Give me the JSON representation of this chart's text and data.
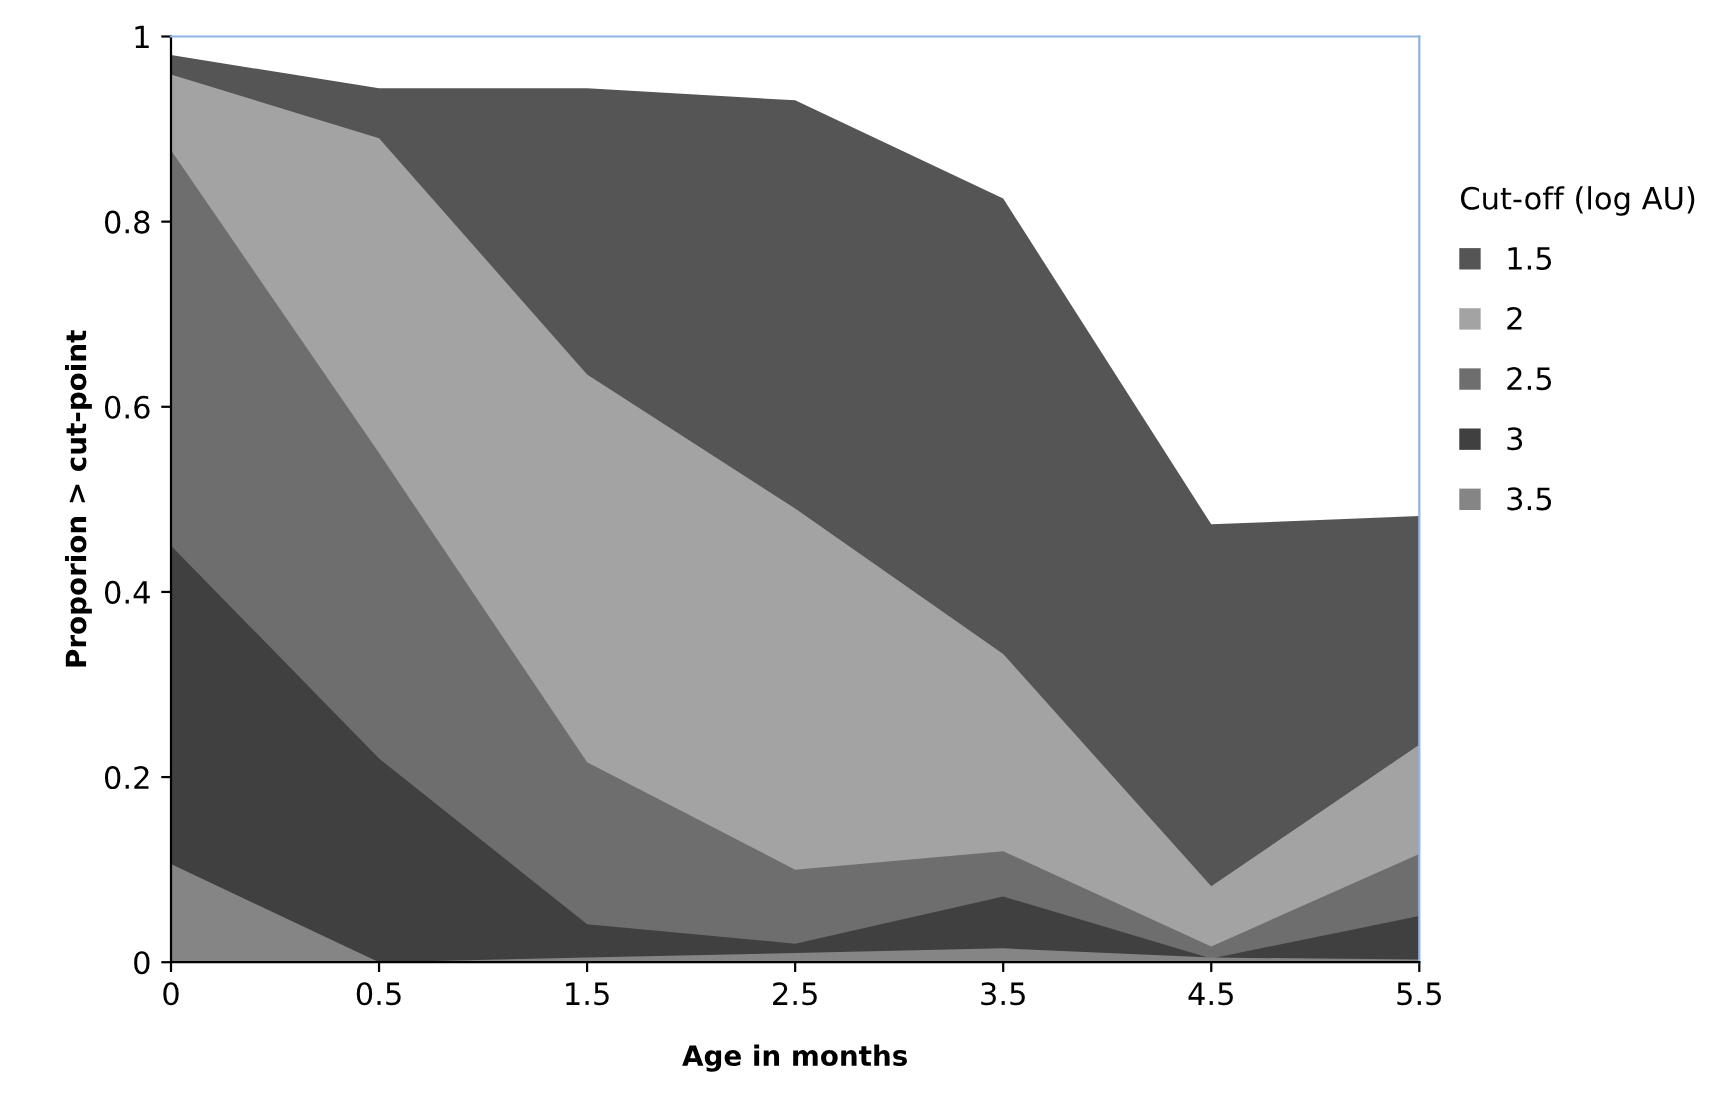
{
  "chart_data": {
    "type": "area",
    "xlabel": "Age in months",
    "ylabel": "Proporion > cut-point",
    "legend_title": "Cut-off (log AU)",
    "legend": "right",
    "categories": [
      "0",
      "0.5",
      "1.5",
      "2.5",
      "3.5",
      "4.5",
      "5.5"
    ],
    "ylim": [
      0,
      1
    ],
    "yticks": [
      0,
      0.2,
      0.4,
      0.6,
      0.8,
      1
    ],
    "grid": false,
    "series": [
      {
        "name": "1.5",
        "color": "#555555",
        "values": [
          0.98,
          0.944,
          0.944,
          0.931,
          0.825,
          0.473,
          0.482
        ]
      },
      {
        "name": "2",
        "color": "#a3a3a3",
        "values": [
          0.959,
          0.89,
          0.635,
          0.49,
          0.333,
          0.082,
          0.235
        ]
      },
      {
        "name": "2.5",
        "color": "#6e6e6e",
        "values": [
          0.877,
          0.55,
          0.216,
          0.1,
          0.12,
          0.017,
          0.117
        ]
      },
      {
        "name": "3",
        "color": "#404040",
        "values": [
          0.45,
          0.22,
          0.041,
          0.02,
          0.071,
          0.004,
          0.05
        ]
      },
      {
        "name": "3.5",
        "color": "#858585",
        "values": [
          0.106,
          0.0,
          0.005,
          0.01,
          0.015,
          0.005,
          0.003
        ]
      }
    ]
  }
}
